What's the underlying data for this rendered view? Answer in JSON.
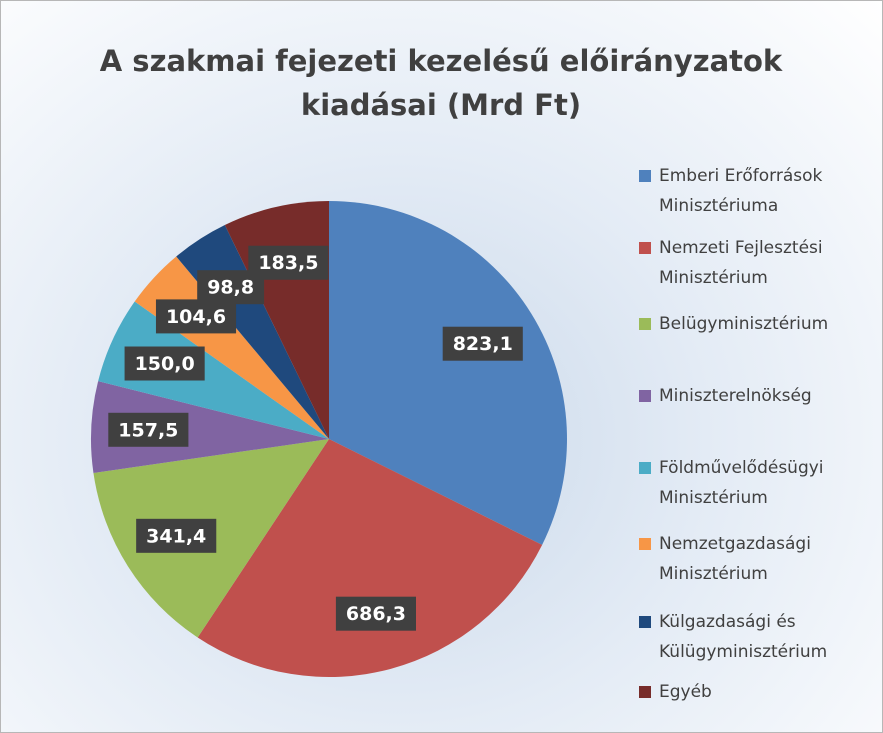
{
  "chart_data": {
    "type": "pie",
    "title": [
      "A szakmai fejezeti kezelésű előirányzatok",
      "kiadásai (Mrd Ft)"
    ],
    "categories": [
      "Emberi Erőforrások Minisztériuma",
      "Nemzeti Fejlesztési Minisztérium",
      "Belügyminisztérium",
      "Miniszterelnökség",
      "Földművelődésügyi Minisztérium",
      "Nemzetgazdasági Minisztérium",
      "Külgazdasági és Külügyminisztérium",
      "Egyéb"
    ],
    "values": [
      823.1,
      686.3,
      341.4,
      157.5,
      150.0,
      104.6,
      98.8,
      183.5
    ],
    "value_labels": [
      "823,1",
      "686,3",
      "341,4",
      "157,5",
      "150,0",
      "104,6",
      "98,8",
      "183,5"
    ],
    "colors": [
      "#4f81bd",
      "#c0504d",
      "#9bbb59",
      "#8064a2",
      "#4bacc6",
      "#f79646",
      "#1f497d",
      "#772c2a"
    ],
    "legend": "right"
  }
}
